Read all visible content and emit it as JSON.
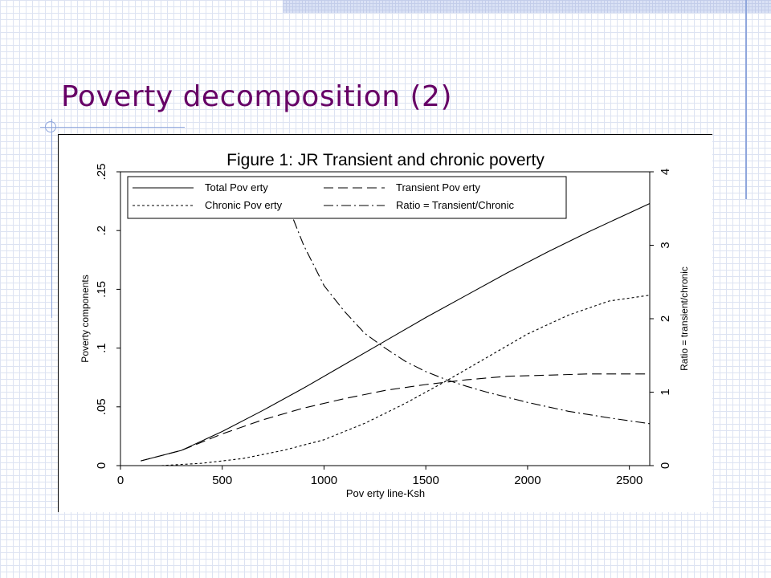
{
  "slide": {
    "title": "Poverty decomposition (2)"
  },
  "chart_data": {
    "type": "line",
    "title": "Figure 1: JR Transient and chronic poverty",
    "xlabel": "Pov erty  line-Ksh",
    "ylabel": "Poverty components",
    "y2label": "Ratio = transient/chronic",
    "xlim": [
      0,
      2600
    ],
    "ylim": [
      0,
      0.25
    ],
    "y2lim": [
      0,
      4
    ],
    "xticks": [
      0,
      500,
      1000,
      1500,
      2000,
      2500
    ],
    "xtick_labels": [
      "0",
      "500",
      "1000",
      "1500",
      "2000",
      "2500"
    ],
    "yticks": [
      0,
      0.05,
      0.1,
      0.15,
      0.2,
      0.25
    ],
    "ytick_labels": [
      "0",
      ".05",
      ".1",
      ".15",
      ".2",
      ".25"
    ],
    "y2ticks": [
      0,
      1,
      2,
      3,
      4
    ],
    "y2tick_labels": [
      "0",
      "1",
      "2",
      "3",
      "4"
    ],
    "grid": false,
    "legend_position": "top-left",
    "series": [
      {
        "name": "Total Pov erty",
        "axis": "left",
        "style": "solid",
        "x": [
          100,
          300,
          500,
          700,
          900,
          1100,
          1300,
          1500,
          1700,
          1900,
          2100,
          2300,
          2500,
          2600
        ],
        "y": [
          0.004,
          0.013,
          0.029,
          0.047,
          0.066,
          0.086,
          0.106,
          0.126,
          0.145,
          0.164,
          0.182,
          0.199,
          0.215,
          0.223
        ]
      },
      {
        "name": "Transient Pov erty",
        "axis": "left",
        "style": "dashed",
        "x": [
          100,
          300,
          500,
          700,
          900,
          1100,
          1300,
          1500,
          1700,
          1900,
          2100,
          2300,
          2500,
          2600
        ],
        "y": [
          0.004,
          0.013,
          0.027,
          0.039,
          0.049,
          0.057,
          0.064,
          0.069,
          0.073,
          0.076,
          0.077,
          0.078,
          0.078,
          0.078
        ]
      },
      {
        "name": "Chronic Pov erty",
        "axis": "left",
        "style": "dotted",
        "x": [
          200,
          400,
          600,
          800,
          1000,
          1200,
          1400,
          1600,
          1800,
          2000,
          2200,
          2400,
          2600
        ],
        "y": [
          0.0,
          0.002,
          0.006,
          0.013,
          0.022,
          0.036,
          0.053,
          0.072,
          0.092,
          0.112,
          0.128,
          0.14,
          0.145
        ]
      },
      {
        "name": "Ratio = Transient/Chronic",
        "axis": "right",
        "style": "dashdot",
        "x": [
          850,
          900,
          1000,
          1100,
          1200,
          1300,
          1400,
          1500,
          1600,
          1700,
          1800,
          1900,
          2000,
          2200,
          2400,
          2600
        ],
        "y": [
          3.35,
          3.0,
          2.45,
          2.1,
          1.8,
          1.6,
          1.42,
          1.28,
          1.17,
          1.08,
          1.0,
          0.93,
          0.86,
          0.74,
          0.65,
          0.57
        ]
      }
    ]
  }
}
